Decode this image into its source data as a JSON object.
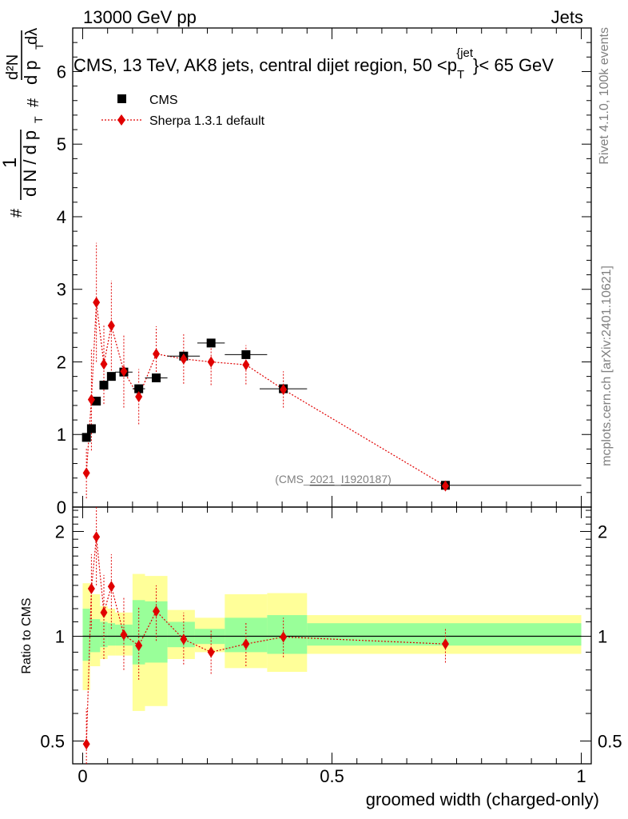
{
  "header": {
    "left": "13000 GeV pp",
    "right": "Jets"
  },
  "side_labels": {
    "rivet": "Rivet 4.1.0,  100k events",
    "mcplots": "mcplots.cern.ch [arXiv:2401.10621]"
  },
  "chart_data": [
    {
      "type": "scatter",
      "panel": "main",
      "title": "CMS, 13 TeV, AK8 jets, central dijet region, 50 <p_T^{jet}< 65 GeV",
      "title_parts": {
        "pre": "CMS, 13 TeV, AK8 jets, central dijet region, 50 <p",
        "sub": "T",
        "sup": "{jet",
        "post": "}< 65 GeV"
      },
      "ylabel": "1/dN/dp_T  d²N/dp_T dλ",
      "ylabel_parts": {
        "one": "1",
        "hash": "#",
        "dn_dpt": "d N / d p",
        "t": "T",
        "d2n": "d²N",
        "dpt_dlambda": "d p",
        "dlambda": "dλ"
      },
      "xlim": [
        -0.02,
        1.02
      ],
      "ylim": [
        0,
        6.6
      ],
      "yticks": [
        0,
        1,
        2,
        3,
        4,
        5,
        6
      ],
      "ytick_labels": [
        "0",
        "1",
        "2",
        "3",
        "4",
        "5",
        "6"
      ],
      "watermark": "(CMS_2021_I1920187)",
      "legend": [
        {
          "name": "CMS",
          "marker": "square",
          "color": "#000000"
        },
        {
          "name": "Sherpa 1.3.1 default",
          "marker": "diamond",
          "color": "#e00000"
        }
      ],
      "series": [
        {
          "name": "CMS",
          "x": [
            0.0075,
            0.0175,
            0.0275,
            0.0425,
            0.0575,
            0.0825,
            0.1125,
            0.1475,
            0.2025,
            0.2575,
            0.3275,
            0.4025,
            0.7275
          ],
          "y": [
            0.96,
            1.08,
            1.46,
            1.68,
            1.8,
            1.86,
            1.63,
            1.78,
            2.08,
            2.26,
            2.1,
            1.63,
            0.3
          ],
          "xerr": [
            0.0075,
            0.0075,
            0.0075,
            0.0075,
            0.0075,
            0.0175,
            0.0125,
            0.0225,
            0.0325,
            0.0275,
            0.0425,
            0.0475,
            0.2725
          ]
        },
        {
          "name": "Sherpa 1.3.1 default",
          "x": [
            0.0075,
            0.0175,
            0.0275,
            0.0425,
            0.0575,
            0.0825,
            0.1125,
            0.1475,
            0.2025,
            0.2575,
            0.3275,
            0.4025,
            0.7275
          ],
          "y": [
            0.47,
            1.48,
            2.82,
            1.97,
            2.5,
            1.87,
            1.52,
            2.11,
            2.04,
            2.0,
            1.96,
            1.62,
            0.29
          ],
          "yerr": [
            0.35,
            0.7,
            0.82,
            0.55,
            0.62,
            0.5,
            0.38,
            0.38,
            0.34,
            0.32,
            0.27,
            0.25,
            0.04
          ]
        }
      ]
    },
    {
      "type": "scatter",
      "panel": "ratio",
      "ylabel": "Ratio to CMS",
      "xlabel": "groomed width (charged-only)",
      "xlim": [
        -0.02,
        1.02
      ],
      "ylim": [
        0.43,
        2.35
      ],
      "yscale": "log",
      "xticks": [
        0,
        0.5,
        1
      ],
      "xtick_labels": [
        "0",
        "0.5",
        "1"
      ],
      "yticks": [
        0.5,
        1,
        2
      ],
      "ytick_labels": [
        "0.5",
        "1",
        "2"
      ],
      "reference_line": 1.0,
      "bands": [
        {
          "x0": 0.0,
          "x1": 0.015,
          "yellow": [
            0.7,
            1.42
          ],
          "green": [
            0.85,
            1.2
          ]
        },
        {
          "x0": 0.015,
          "x1": 0.035,
          "yellow": [
            0.82,
            1.32
          ],
          "green": [
            0.9,
            1.12
          ]
        },
        {
          "x0": 0.035,
          "x1": 0.05,
          "yellow": [
            0.86,
            1.22
          ],
          "green": [
            0.93,
            1.1
          ]
        },
        {
          "x0": 0.05,
          "x1": 0.065,
          "yellow": [
            0.88,
            1.2
          ],
          "green": [
            0.94,
            1.09
          ]
        },
        {
          "x0": 0.065,
          "x1": 0.1,
          "yellow": [
            0.88,
            1.17
          ],
          "green": [
            0.94,
            1.08
          ]
        },
        {
          "x0": 0.1,
          "x1": 0.125,
          "yellow": [
            0.61,
            1.51
          ],
          "green": [
            0.83,
            1.27
          ]
        },
        {
          "x0": 0.125,
          "x1": 0.17,
          "yellow": [
            0.63,
            1.49
          ],
          "green": [
            0.84,
            1.26
          ]
        },
        {
          "x0": 0.17,
          "x1": 0.225,
          "yellow": [
            0.86,
            1.19
          ],
          "green": [
            0.93,
            1.1
          ]
        },
        {
          "x0": 0.225,
          "x1": 0.285,
          "yellow": [
            0.9,
            1.13
          ],
          "green": [
            0.95,
            1.05
          ]
        },
        {
          "x0": 0.285,
          "x1": 0.37,
          "yellow": [
            0.81,
            1.32
          ],
          "green": [
            0.9,
            1.13
          ]
        },
        {
          "x0": 0.37,
          "x1": 0.45,
          "yellow": [
            0.79,
            1.33
          ],
          "green": [
            0.89,
            1.15
          ]
        },
        {
          "x0": 0.45,
          "x1": 1.0,
          "yellow": [
            0.89,
            1.15
          ],
          "green": [
            0.94,
            1.09
          ]
        }
      ],
      "series": [
        {
          "name": "Sherpa 1.3.1 default",
          "x": [
            0.0075,
            0.0175,
            0.0275,
            0.0425,
            0.0575,
            0.0825,
            0.1125,
            0.1475,
            0.2025,
            0.2575,
            0.3275,
            0.4025,
            0.7275
          ],
          "y": [
            0.49,
            1.37,
            1.93,
            1.17,
            1.39,
            1.01,
            0.94,
            1.18,
            0.98,
            0.9,
            0.95,
            0.995,
            0.95
          ],
          "ylo": [
            0.4,
            1.05,
            1.4,
            0.86,
            1.05,
            0.8,
            0.75,
            0.97,
            0.83,
            0.78,
            0.82,
            0.87,
            0.84
          ],
          "yhi": [
            0.62,
            1.72,
            2.45,
            1.5,
            1.72,
            1.3,
            1.22,
            1.4,
            1.17,
            1.04,
            1.1,
            1.13,
            1.06
          ]
        }
      ]
    }
  ]
}
